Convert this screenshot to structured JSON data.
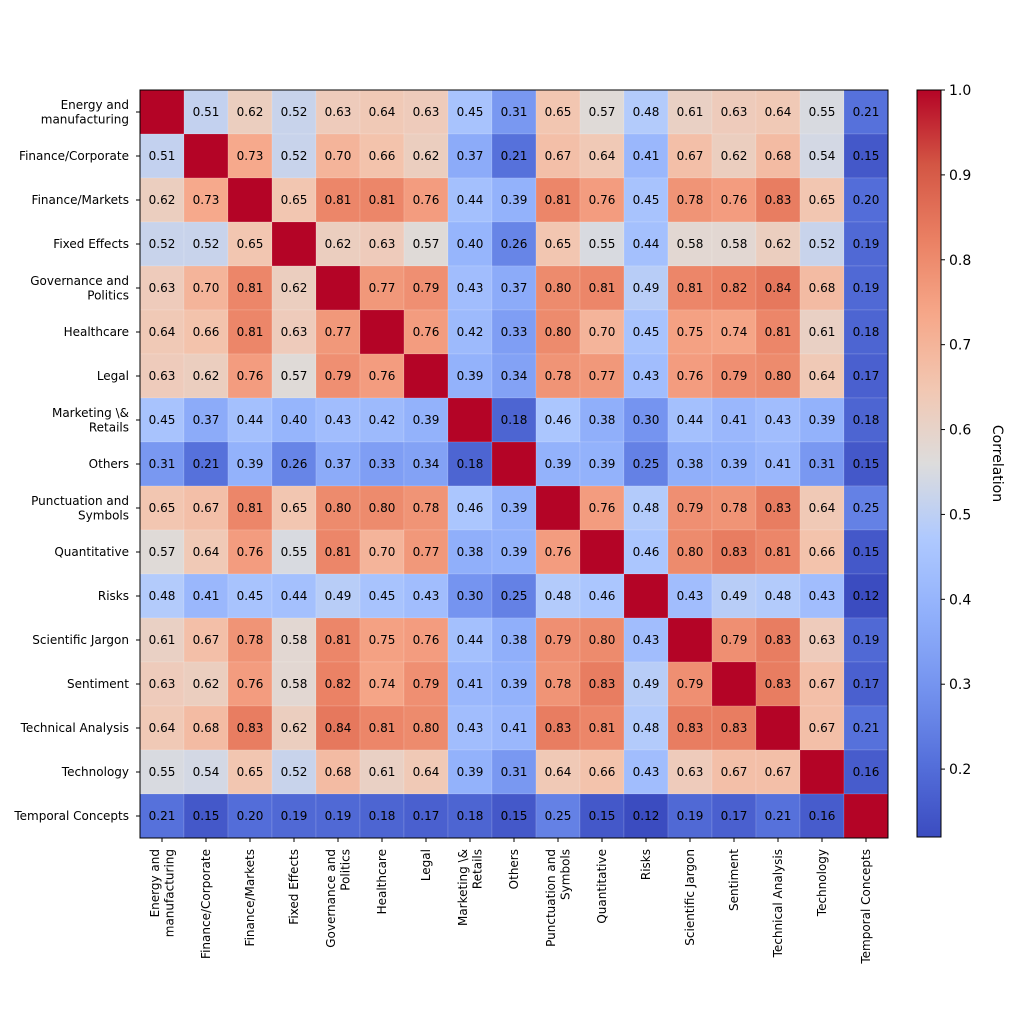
{
  "chart_data": {
    "type": "heatmap",
    "title": "",
    "colorbar_label": "Correlation",
    "colorbar_ticks": [
      0.2,
      0.3,
      0.4,
      0.5,
      0.6,
      0.7,
      0.8,
      0.9,
      1.0
    ],
    "colorbar_tick_labels": [
      "0.2",
      "0.3",
      "0.4",
      "0.5",
      "0.6",
      "0.7",
      "0.8",
      "0.9",
      "1.0"
    ],
    "colormap": "coolwarm",
    "vmin": 0.12,
    "vmax": 1.0,
    "show_diagonal_values": false,
    "categories": [
      "Energy and manufacturing",
      "Finance/Corporate",
      "Finance/Markets",
      "Fixed Effects",
      "Governance and Politics",
      "Healthcare",
      "Legal",
      "Marketing \\& Retails",
      "Others",
      "Punctuation and Symbols",
      "Quantitative",
      "Risks",
      "Scientific Jargon",
      "Sentiment",
      "Technical Analysis",
      "Technology",
      "Temporal Concepts"
    ],
    "row_labels": [
      [
        "Energy and",
        "manufacturing"
      ],
      [
        "Finance/Corporate"
      ],
      [
        "Finance/Markets"
      ],
      [
        "Fixed Effects"
      ],
      [
        "Governance and",
        "Politics"
      ],
      [
        "Healthcare"
      ],
      [
        "Legal"
      ],
      [
        "Marketing \\&",
        "Retails"
      ],
      [
        "Others"
      ],
      [
        "Punctuation and",
        "Symbols"
      ],
      [
        "Quantitative"
      ],
      [
        "Risks"
      ],
      [
        "Scientific Jargon"
      ],
      [
        "Sentiment"
      ],
      [
        "Technical Analysis"
      ],
      [
        "Technology"
      ],
      [
        "Temporal Concepts"
      ]
    ],
    "col_labels": [
      [
        "Energy and",
        "manufacturing"
      ],
      [
        "Finance/Corporate"
      ],
      [
        "Finance/Markets"
      ],
      [
        "Fixed Effects"
      ],
      [
        "Governance and",
        "Politics"
      ],
      [
        "Healthcare"
      ],
      [
        "Legal"
      ],
      [
        "Marketing \\&",
        "Retails"
      ],
      [
        "Others"
      ],
      [
        "Punctuation and",
        "Symbols"
      ],
      [
        "Quantitative"
      ],
      [
        "Risks"
      ],
      [
        "Scientific Jargon"
      ],
      [
        "Sentiment"
      ],
      [
        "Technical Analysis"
      ],
      [
        "Technology"
      ],
      [
        "Temporal Concepts"
      ]
    ],
    "matrix": [
      [
        1.0,
        0.51,
        0.62,
        0.52,
        0.63,
        0.64,
        0.63,
        0.45,
        0.31,
        0.65,
        0.57,
        0.48,
        0.61,
        0.63,
        0.64,
        0.55,
        0.21
      ],
      [
        0.51,
        1.0,
        0.73,
        0.52,
        0.7,
        0.66,
        0.62,
        0.37,
        0.21,
        0.67,
        0.64,
        0.41,
        0.67,
        0.62,
        0.68,
        0.54,
        0.15
      ],
      [
        0.62,
        0.73,
        1.0,
        0.65,
        0.81,
        0.81,
        0.76,
        0.44,
        0.39,
        0.81,
        0.76,
        0.45,
        0.78,
        0.76,
        0.83,
        0.65,
        0.2
      ],
      [
        0.52,
        0.52,
        0.65,
        1.0,
        0.62,
        0.63,
        0.57,
        0.4,
        0.26,
        0.65,
        0.55,
        0.44,
        0.58,
        0.58,
        0.62,
        0.52,
        0.19
      ],
      [
        0.63,
        0.7,
        0.81,
        0.62,
        1.0,
        0.77,
        0.79,
        0.43,
        0.37,
        0.8,
        0.81,
        0.49,
        0.81,
        0.82,
        0.84,
        0.68,
        0.19
      ],
      [
        0.64,
        0.66,
        0.81,
        0.63,
        0.77,
        1.0,
        0.76,
        0.42,
        0.33,
        0.8,
        0.7,
        0.45,
        0.75,
        0.74,
        0.81,
        0.61,
        0.18
      ],
      [
        0.63,
        0.62,
        0.76,
        0.57,
        0.79,
        0.76,
        1.0,
        0.39,
        0.34,
        0.78,
        0.77,
        0.43,
        0.76,
        0.79,
        0.8,
        0.64,
        0.17
      ],
      [
        0.45,
        0.37,
        0.44,
        0.4,
        0.43,
        0.42,
        0.39,
        1.0,
        0.18,
        0.46,
        0.38,
        0.3,
        0.44,
        0.41,
        0.43,
        0.39,
        0.18
      ],
      [
        0.31,
        0.21,
        0.39,
        0.26,
        0.37,
        0.33,
        0.34,
        0.18,
        1.0,
        0.39,
        0.39,
        0.25,
        0.38,
        0.39,
        0.41,
        0.31,
        0.15
      ],
      [
        0.65,
        0.67,
        0.81,
        0.65,
        0.8,
        0.8,
        0.78,
        0.46,
        0.39,
        1.0,
        0.76,
        0.48,
        0.79,
        0.78,
        0.83,
        0.64,
        0.25
      ],
      [
        0.57,
        0.64,
        0.76,
        0.55,
        0.81,
        0.7,
        0.77,
        0.38,
        0.39,
        0.76,
        1.0,
        0.46,
        0.8,
        0.83,
        0.81,
        0.66,
        0.15
      ],
      [
        0.48,
        0.41,
        0.45,
        0.44,
        0.49,
        0.45,
        0.43,
        0.3,
        0.25,
        0.48,
        0.46,
        1.0,
        0.43,
        0.49,
        0.48,
        0.43,
        0.12
      ],
      [
        0.61,
        0.67,
        0.78,
        0.58,
        0.81,
        0.75,
        0.76,
        0.44,
        0.38,
        0.79,
        0.8,
        0.43,
        1.0,
        0.79,
        0.83,
        0.63,
        0.19
      ],
      [
        0.63,
        0.62,
        0.76,
        0.58,
        0.82,
        0.74,
        0.79,
        0.41,
        0.39,
        0.78,
        0.83,
        0.49,
        0.79,
        1.0,
        0.83,
        0.67,
        0.17
      ],
      [
        0.64,
        0.68,
        0.83,
        0.62,
        0.84,
        0.81,
        0.8,
        0.43,
        0.41,
        0.83,
        0.81,
        0.48,
        0.83,
        0.83,
        1.0,
        0.67,
        0.21
      ],
      [
        0.55,
        0.54,
        0.65,
        0.52,
        0.68,
        0.61,
        0.64,
        0.39,
        0.31,
        0.64,
        0.66,
        0.43,
        0.63,
        0.67,
        0.67,
        1.0,
        0.16
      ],
      [
        0.21,
        0.15,
        0.2,
        0.19,
        0.19,
        0.18,
        0.17,
        0.18,
        0.15,
        0.25,
        0.15,
        0.12,
        0.19,
        0.17,
        0.21,
        0.16,
        1.0
      ]
    ]
  }
}
